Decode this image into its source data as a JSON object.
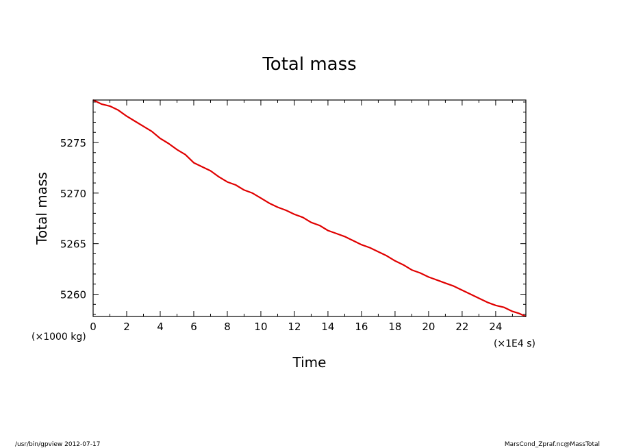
{
  "footer": {
    "left": "/usr/bin/gpview  2012-07-17",
    "right": "MarsCond_Zpraf.nc@MassTotal"
  },
  "chart_data": {
    "type": "line",
    "title": "Total mass",
    "xlabel": "Time",
    "ylabel": "Total mass",
    "x_unit": "(×1E4 s)",
    "y_unit": "(×1000 kg)",
    "xlim": [
      0,
      25.8
    ],
    "ylim": [
      5257.8,
      5279.2
    ],
    "x_ticks": [
      0,
      2,
      4,
      6,
      8,
      10,
      12,
      14,
      16,
      18,
      20,
      22,
      24
    ],
    "y_ticks": [
      5260,
      5265,
      5270,
      5275
    ],
    "grid": false,
    "line_color": "#e00000",
    "series": [
      {
        "x": [
          0,
          0.5,
          1,
          1.5,
          2,
          2.5,
          3,
          3.5,
          4,
          4.5,
          5,
          5.5,
          6,
          6.5,
          7,
          7.5,
          8,
          8.5,
          9,
          9.5,
          10,
          10.5,
          11,
          11.5,
          12,
          12.5,
          13,
          13.5,
          14,
          14.5,
          15,
          15.5,
          16,
          16.5,
          17,
          17.5,
          18,
          18.5,
          19,
          19.5,
          20,
          20.5,
          21,
          21.5,
          22,
          22.5,
          23,
          23.5,
          24,
          24.5,
          25,
          25.4,
          25.8
        ],
        "y": [
          5279.2,
          5278.8,
          5278.6,
          5278.2,
          5277.6,
          5277.1,
          5276.6,
          5276.1,
          5275.4,
          5274.9,
          5274.3,
          5273.8,
          5273.0,
          5272.6,
          5272.2,
          5271.6,
          5271.1,
          5270.8,
          5270.3,
          5270.0,
          5269.5,
          5269.0,
          5268.6,
          5268.3,
          5267.9,
          5267.6,
          5267.1,
          5266.8,
          5266.3,
          5266.0,
          5265.7,
          5265.3,
          5264.9,
          5264.6,
          5264.2,
          5263.8,
          5263.3,
          5262.9,
          5262.4,
          5262.1,
          5261.7,
          5261.4,
          5261.1,
          5260.8,
          5260.4,
          5260.0,
          5259.6,
          5259.2,
          5258.9,
          5258.7,
          5258.3,
          5258.1,
          5257.8
        ]
      }
    ]
  }
}
